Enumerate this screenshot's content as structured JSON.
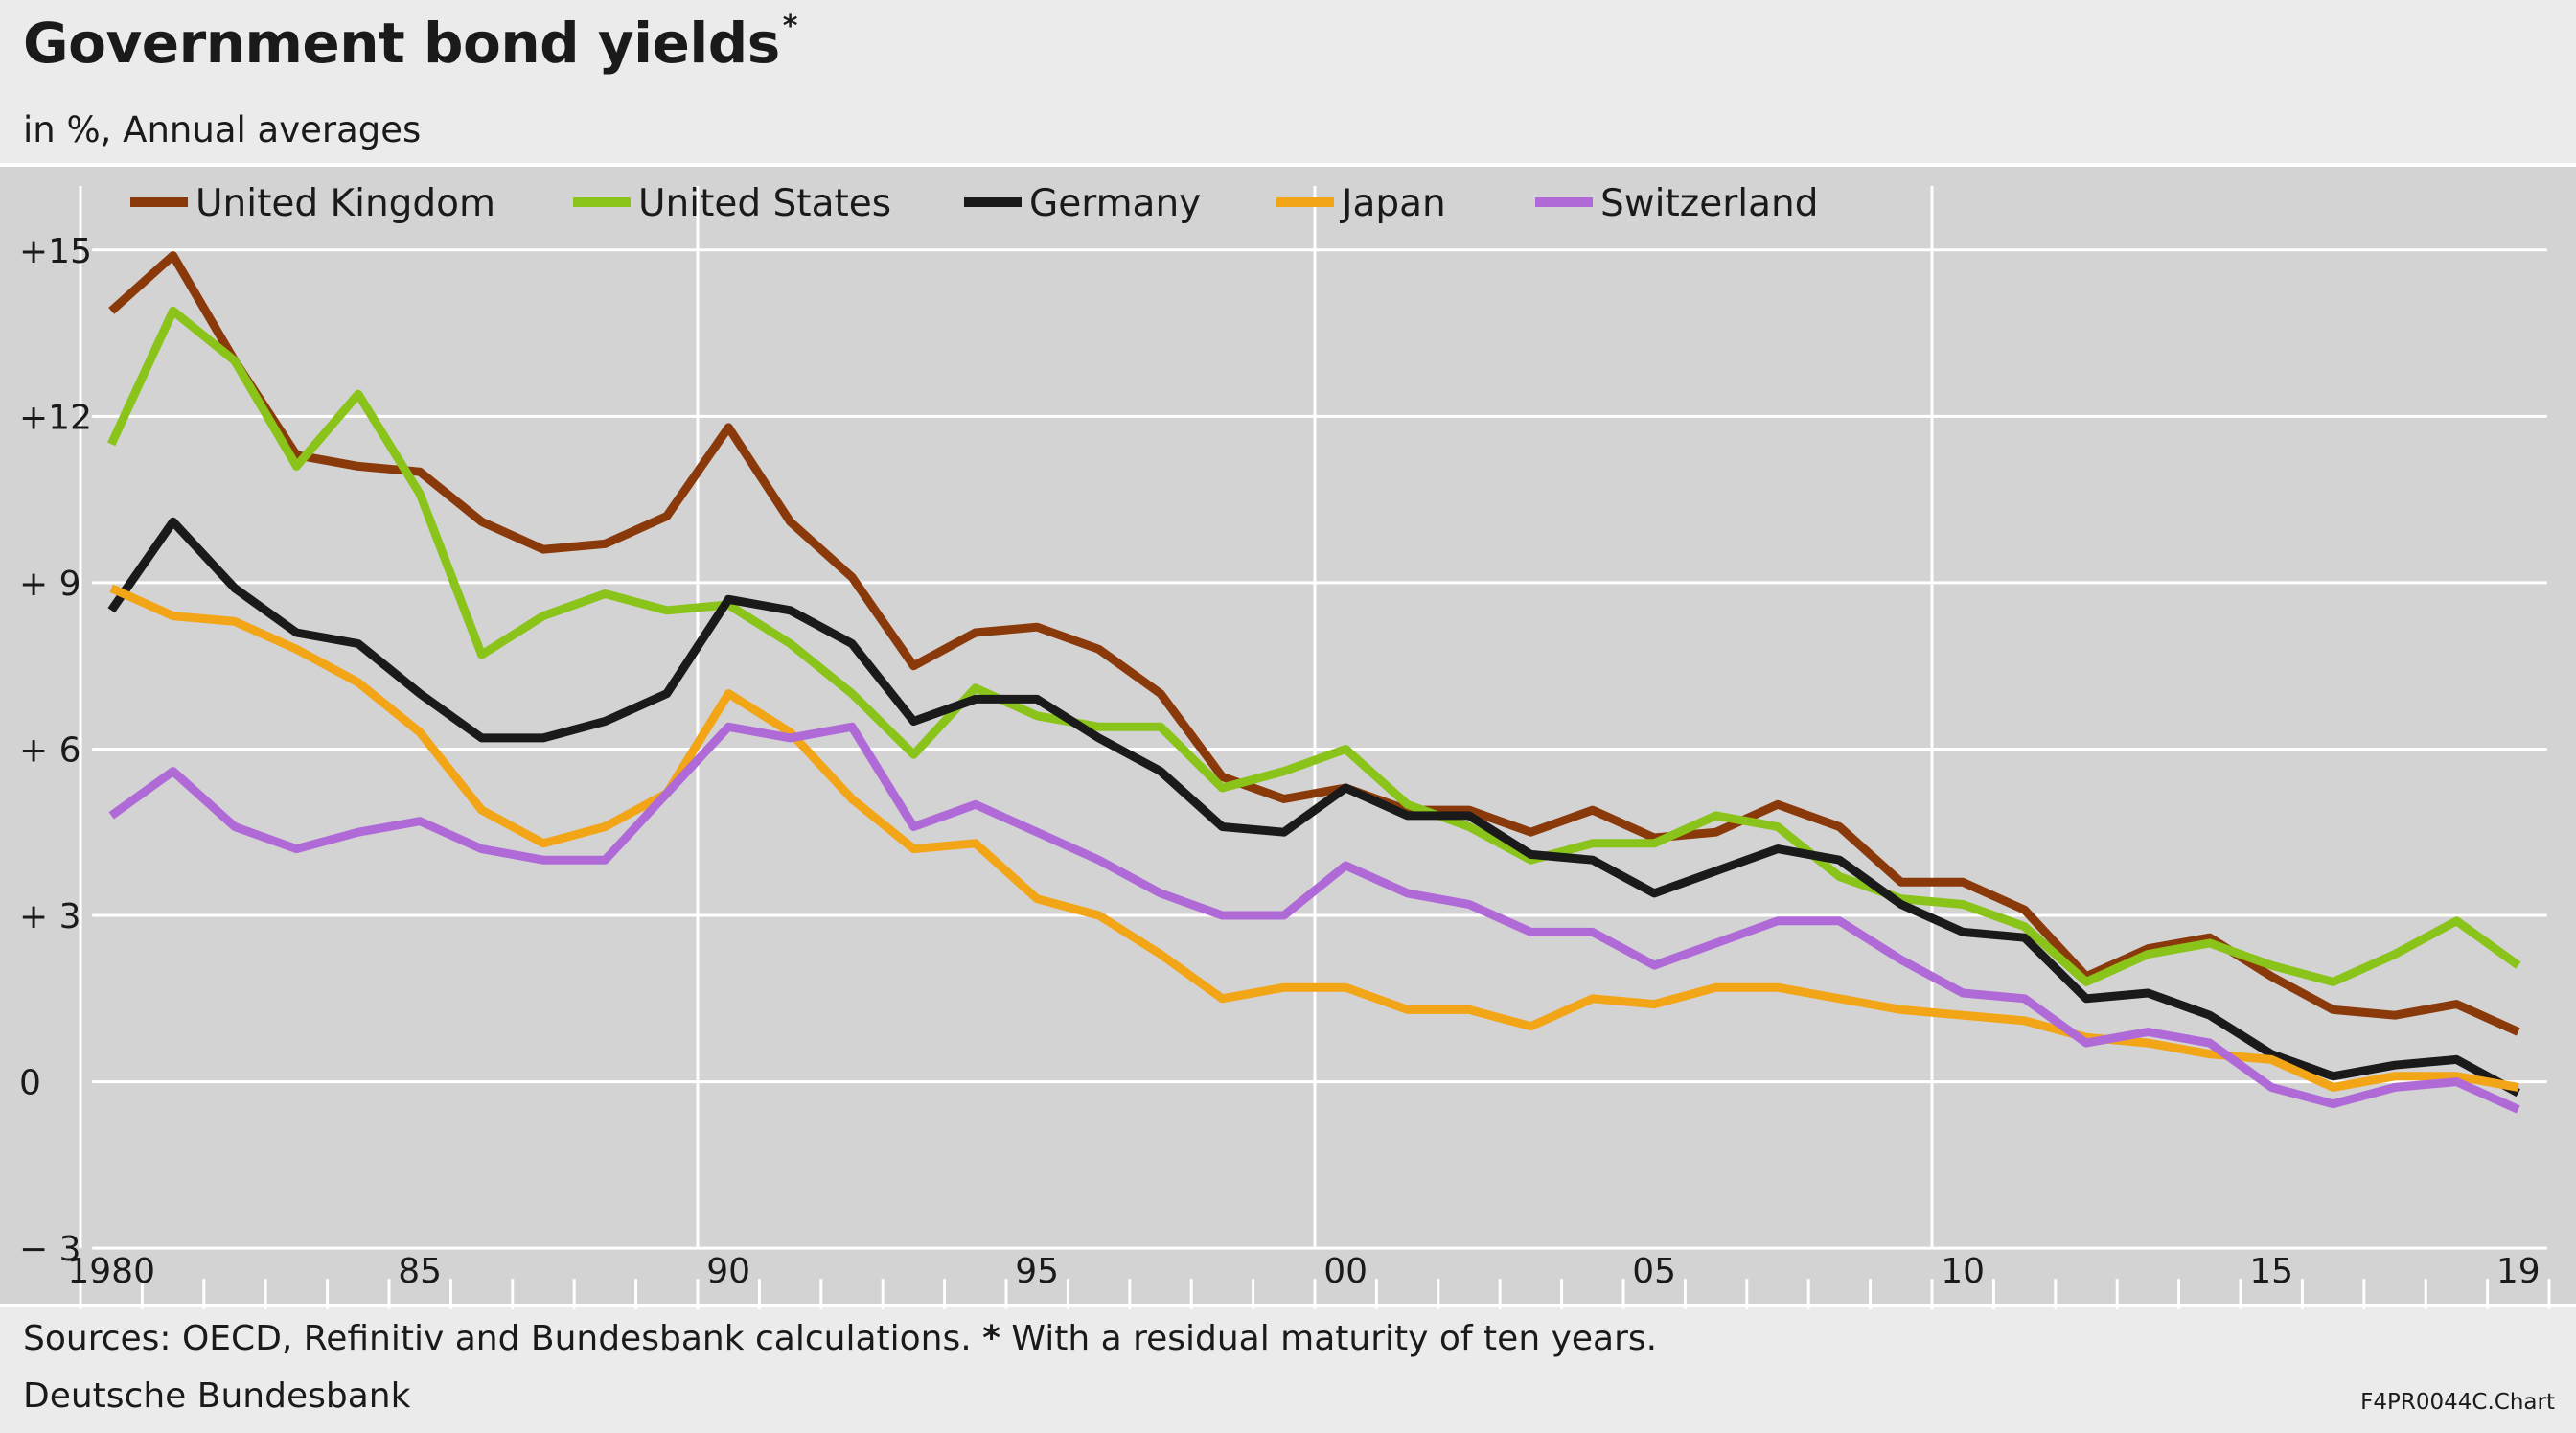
{
  "title": "Government bond yields",
  "title_marker": "*",
  "subtitle": "in %, Annual averages",
  "footer": {
    "sources": "Sources: OECD, Refinitiv and Bundesbank calculations.",
    "note_marker": "*",
    "note": "With a residual maturity of ten years.",
    "publisher": "Deutsche Bundesbank",
    "code": "F4PR0044C.Chart"
  },
  "chart_data": {
    "type": "line",
    "title": "Government bond yields",
    "subtitle": "in %, Annual averages",
    "xlabel": "",
    "ylabel": "",
    "x": [
      1980,
      1981,
      1982,
      1983,
      1984,
      1985,
      1986,
      1987,
      1988,
      1989,
      1990,
      1991,
      1992,
      1993,
      1994,
      1995,
      1996,
      1997,
      1998,
      1999,
      2000,
      2001,
      2002,
      2003,
      2004,
      2005,
      2006,
      2007,
      2008,
      2009,
      2010,
      2011,
      2012,
      2013,
      2014,
      2015,
      2016,
      2017,
      2018,
      2019
    ],
    "x_tick_labels": [
      "1980",
      "85",
      "90",
      "95",
      "00",
      "05",
      "10",
      "15",
      "19"
    ],
    "x_tick_positions": [
      1980,
      1985,
      1990,
      1995,
      2000,
      2005,
      2010,
      2015,
      2019
    ],
    "x_range": [
      1979.5,
      2019.5
    ],
    "ylim": [
      -4,
      16.5
    ],
    "y_ticks": [
      15,
      12,
      9,
      6,
      3,
      0,
      -3
    ],
    "y_tick_labels": [
      "+15",
      "+12",
      "+ 9",
      "+ 6",
      "+ 3",
      "0",
      "− 3"
    ],
    "legend_position": "top",
    "grid": true,
    "series": [
      {
        "name": "United Kingdom",
        "color": "#8a3a0a",
        "values": [
          13.9,
          14.9,
          13.0,
          11.3,
          11.1,
          11.0,
          10.1,
          9.6,
          9.7,
          10.2,
          11.8,
          10.1,
          9.1,
          7.5,
          8.1,
          8.2,
          7.8,
          7.0,
          5.5,
          5.1,
          5.3,
          4.9,
          4.9,
          4.5,
          4.9,
          4.4,
          4.5,
          5.0,
          4.6,
          3.6,
          3.6,
          3.1,
          1.9,
          2.4,
          2.6,
          1.9,
          1.3,
          1.2,
          1.4,
          0.9
        ]
      },
      {
        "name": "United States",
        "color": "#8ac41a",
        "values": [
          11.5,
          13.9,
          13.0,
          11.1,
          12.4,
          10.6,
          7.7,
          8.4,
          8.8,
          8.5,
          8.6,
          7.9,
          7.0,
          5.9,
          7.1,
          6.6,
          6.4,
          6.4,
          5.3,
          5.6,
          6.0,
          5.0,
          4.6,
          4.0,
          4.3,
          4.3,
          4.8,
          4.6,
          3.7,
          3.3,
          3.2,
          2.8,
          1.8,
          2.3,
          2.5,
          2.1,
          1.8,
          2.3,
          2.9,
          2.1
        ]
      },
      {
        "name": "Germany",
        "color": "#1a1a1a",
        "values": [
          8.5,
          10.1,
          8.9,
          8.1,
          7.9,
          7.0,
          6.2,
          6.2,
          6.5,
          7.0,
          8.7,
          8.5,
          7.9,
          6.5,
          6.9,
          6.9,
          6.2,
          5.6,
          4.6,
          4.5,
          5.3,
          4.8,
          4.8,
          4.1,
          4.0,
          3.4,
          3.8,
          4.2,
          4.0,
          3.2,
          2.7,
          2.6,
          1.5,
          1.6,
          1.2,
          0.5,
          0.1,
          0.3,
          0.4,
          -0.2
        ]
      },
      {
        "name": "Japan",
        "color": "#f2a516",
        "values": [
          8.9,
          8.4,
          8.3,
          7.8,
          7.2,
          6.3,
          4.9,
          4.3,
          4.6,
          5.2,
          7.0,
          6.3,
          5.1,
          4.2,
          4.3,
          3.3,
          3.0,
          2.3,
          1.5,
          1.7,
          1.7,
          1.3,
          1.3,
          1.0,
          1.5,
          1.4,
          1.7,
          1.7,
          1.5,
          1.3,
          1.2,
          1.1,
          0.8,
          0.7,
          0.5,
          0.4,
          -0.1,
          0.1,
          0.1,
          -0.1
        ]
      },
      {
        "name": "Switzerland",
        "color": "#b06ad8",
        "values": [
          4.8,
          5.6,
          4.6,
          4.2,
          4.5,
          4.7,
          4.2,
          4.0,
          4.0,
          5.2,
          6.4,
          6.2,
          6.4,
          4.6,
          5.0,
          4.5,
          4.0,
          3.4,
          3.0,
          3.0,
          3.9,
          3.4,
          3.2,
          2.7,
          2.7,
          2.1,
          2.5,
          2.9,
          2.9,
          2.2,
          1.6,
          1.5,
          0.7,
          0.9,
          0.7,
          -0.1,
          -0.4,
          -0.1,
          0.0,
          -0.5
        ]
      }
    ]
  }
}
